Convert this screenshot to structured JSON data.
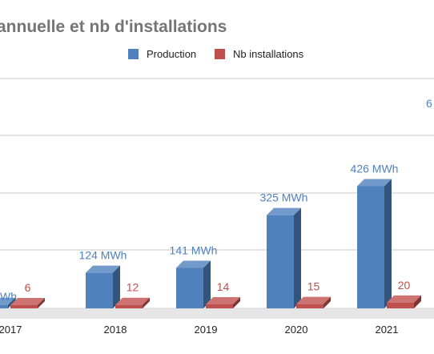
{
  "chart_data": {
    "type": "bar",
    "title": "annuelle et  nb d'installations",
    "categories": [
      "2017",
      "2018",
      "2019",
      "2020",
      "2021"
    ],
    "series": [
      {
        "name": "Production",
        "values": [
          12,
          124,
          141,
          325,
          426
        ],
        "labels": [
          "Wh",
          "124 MWh",
          "141 MWh",
          "325 MWh",
          "426 MWh"
        ],
        "color": "#4f81bd"
      },
      {
        "name": "Nb installations",
        "values": [
          6,
          12,
          14,
          15,
          20
        ],
        "labels": [
          "6",
          "12",
          "14",
          "15",
          "20"
        ],
        "color": "#c0504d"
      }
    ],
    "clipped_label": "6",
    "grid": true,
    "legend_position": "top",
    "title_color": "#757575",
    "grid_color": "#c8c8c8",
    "floor_color": "#e6e6e6"
  }
}
